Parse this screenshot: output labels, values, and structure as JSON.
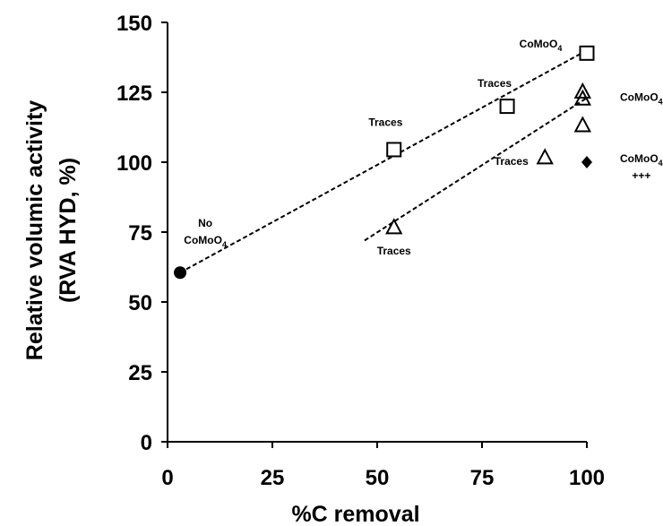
{
  "chart_data": {
    "type": "scatter",
    "xlabel": "%C removal",
    "ylabel_line1": "Relative volumic activity",
    "ylabel_line2": "(RVA HYD, %)",
    "xlim": [
      0,
      100
    ],
    "ylim": [
      0,
      150
    ],
    "xticks": [
      "0",
      "25",
      "50",
      "75",
      "100"
    ],
    "yticks": [
      "0",
      "25",
      "50",
      "75",
      "100",
      "125",
      "150"
    ],
    "grid": false,
    "series": [
      {
        "marker": "circle-filled",
        "points": [
          [
            3,
            60.5
          ]
        ]
      },
      {
        "marker": "square-open",
        "points": [
          [
            54,
            104.5
          ],
          [
            81,
            120
          ],
          [
            100,
            139
          ]
        ]
      },
      {
        "marker": "triangle-open",
        "points": [
          [
            54,
            76.5
          ],
          [
            90,
            101.5
          ],
          [
            99,
            113
          ],
          [
            99,
            122.5
          ],
          [
            99,
            125
          ]
        ]
      },
      {
        "marker": "diamond-filled",
        "points": [
          [
            100,
            100
          ]
        ]
      }
    ],
    "trendlines": [
      {
        "from": [
          3,
          60.5
        ],
        "to": [
          100,
          140
        ]
      },
      {
        "from": [
          47,
          72
        ],
        "to": [
          100,
          123
        ]
      }
    ],
    "annotations": [
      {
        "lines": [
          "No",
          "CoMoO|4"
        ],
        "x": 9,
        "y": 77
      },
      {
        "lines": [
          "Traces"
        ],
        "x": 52,
        "y": 113
      },
      {
        "lines": [
          "Traces"
        ],
        "x": 78,
        "y": 127
      },
      {
        "lines": [
          "CoMoO|4"
        ],
        "x": 89,
        "y": 141
      },
      {
        "lines": [
          "CoMoO|4"
        ],
        "x": 113,
        "y": 122
      },
      {
        "lines": [
          "Traces"
        ],
        "x": 82,
        "y": 99
      },
      {
        "lines": [
          "Traces"
        ],
        "x": 54,
        "y": 67
      },
      {
        "lines": [
          "CoMoO|4",
          "+++"
        ],
        "x": 113,
        "y": 100
      }
    ]
  }
}
